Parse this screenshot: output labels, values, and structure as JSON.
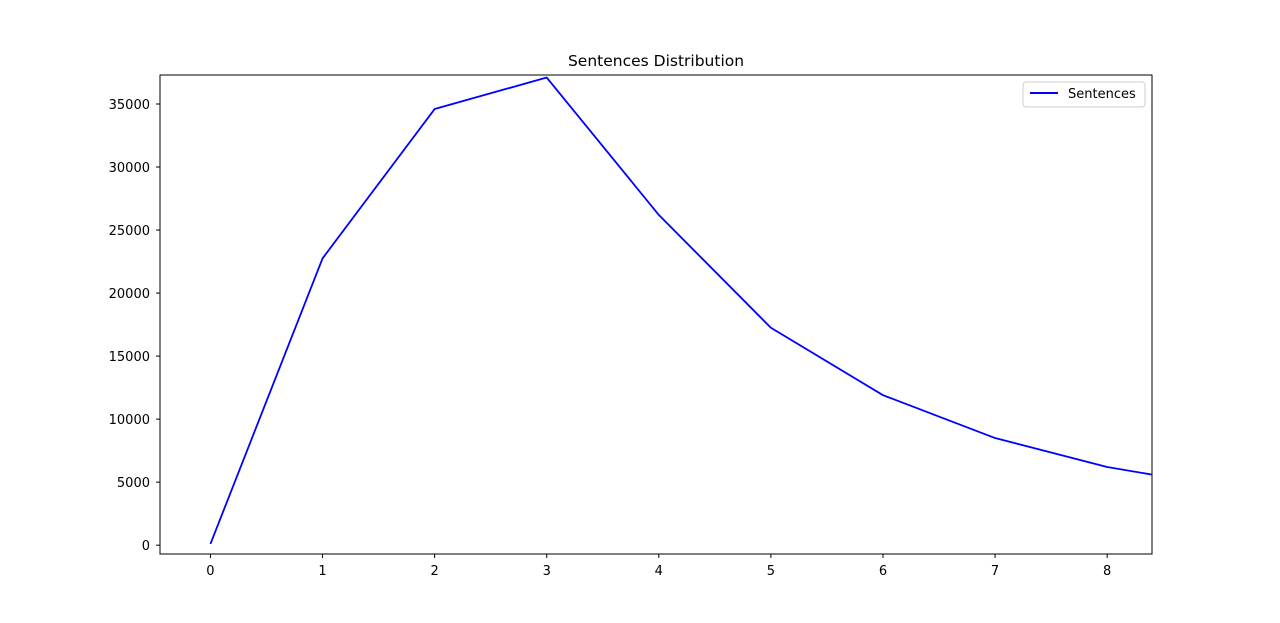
{
  "chart_data": {
    "type": "line",
    "title": "Sentences Distribution",
    "xlabel": "",
    "ylabel": "",
    "x": [
      0,
      1,
      2,
      3,
      4,
      5,
      6,
      7,
      8,
      8.4
    ],
    "series": [
      {
        "name": "Sentences",
        "color": "#0000ff",
        "values": [
          100,
          22750,
          34600,
          37100,
          26200,
          17250,
          11900,
          8500,
          6200,
          5600
        ]
      }
    ],
    "xlim": [
      -0.45,
      8.4
    ],
    "ylim": [
      -700,
      37300
    ],
    "x_ticks": [
      0,
      1,
      2,
      3,
      4,
      5,
      6,
      7,
      8
    ],
    "y_ticks": [
      0,
      5000,
      10000,
      15000,
      20000,
      25000,
      30000,
      35000
    ],
    "grid": false,
    "legend_position": "upper right"
  }
}
